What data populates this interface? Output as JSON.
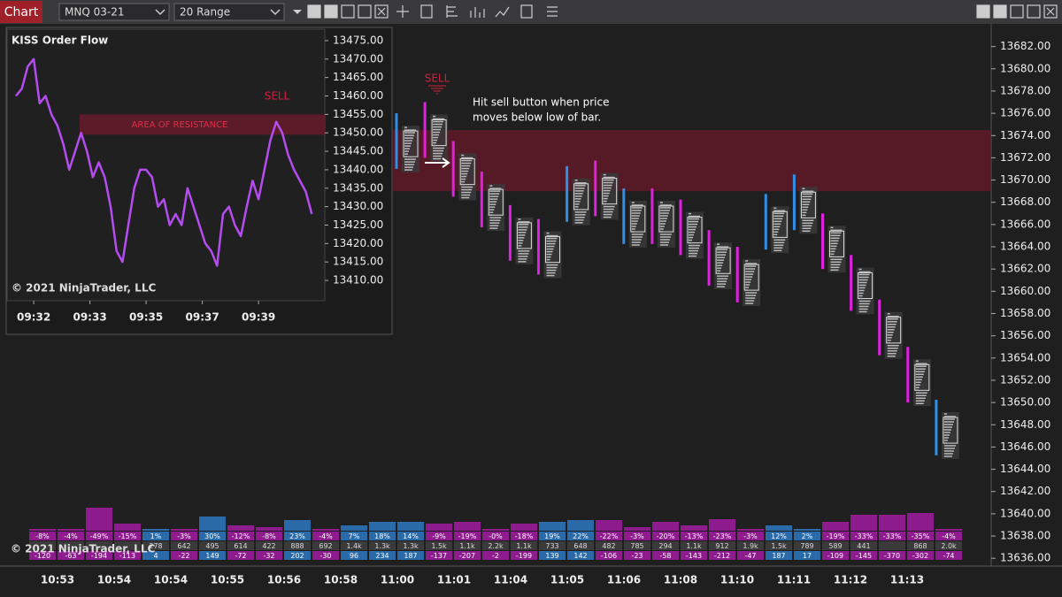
{
  "toolbar": {
    "title": "Chart",
    "instrument": "MNQ 03-21",
    "bar_type": "20 Range"
  },
  "main_chart": {
    "type": "candlestick",
    "ylim": [
      13635.3,
      13683.8
    ],
    "yticks": [
      {
        "value": 13636,
        "label": "13636.00"
      },
      {
        "value": 13638,
        "label": "13638.00"
      },
      {
        "value": 13640,
        "label": "13640.00"
      },
      {
        "value": 13642,
        "label": "13642.00"
      },
      {
        "value": 13644,
        "label": "13644.00"
      },
      {
        "value": 13646,
        "label": "13646.00"
      },
      {
        "value": 13648,
        "label": "13648.00"
      },
      {
        "value": 13650,
        "label": "13650.00"
      },
      {
        "value": 13652,
        "label": "13652.00"
      },
      {
        "value": 13654,
        "label": "13654.00"
      },
      {
        "value": 13656,
        "label": "13656.00"
      },
      {
        "value": 13658,
        "label": "13658.00"
      },
      {
        "value": 13660,
        "label": "13660.00"
      },
      {
        "value": 13662,
        "label": "13662.00"
      },
      {
        "value": 13664,
        "label": "13664.00"
      },
      {
        "value": 13666,
        "label": "13666.00"
      },
      {
        "value": 13668,
        "label": "13668.00"
      },
      {
        "value": 13670,
        "label": "13670.00"
      },
      {
        "value": 13672,
        "label": "13672.00"
      },
      {
        "value": 13674,
        "label": "13674.00"
      },
      {
        "value": 13676,
        "label": "13676.00"
      },
      {
        "value": 13678,
        "label": "13678.00"
      },
      {
        "value": 13680,
        "label": "13680.00"
      },
      {
        "value": 13682,
        "label": "13682.00"
      }
    ],
    "xtick_labels": [
      "10:53",
      "10:54",
      "10:54",
      "10:55",
      "10:56",
      "10:58",
      "11:00",
      "11:01",
      "11:04",
      "11:05",
      "11:06",
      "11:08",
      "11:10",
      "11:11",
      "11:12",
      "11:13"
    ],
    "candles": {
      "open": [
        13671,
        13677,
        13673.5,
        13670.75,
        13667.75,
        13666.5,
        13666.25,
        13671.75,
        13664.25,
        13669.25,
        13668.25,
        13665.5,
        13664,
        13663.75,
        13665.5,
        13667,
        13663.25,
        13659.25,
        13655,
        13645.25
      ],
      "close": [
        13676,
        13672,
        13668.5,
        13665.75,
        13662.75,
        13661.5,
        13671.25,
        13666.75,
        13669.25,
        13664.25,
        13663.25,
        13660.5,
        13659,
        13668.75,
        13670.5,
        13662,
        13658.25,
        13654.25,
        13650,
        13650.25
      ]
    },
    "up_color": "#2f8fe6",
    "down_color": "#e020e0",
    "resistance_zone": [
      13669,
      13674.5
    ],
    "sell_label": "SELL",
    "annotation": [
      "Hit sell button when price",
      "moves below low of bar."
    ],
    "copyright": "© 2021 NinjaTrader, LLC"
  },
  "order_flow_stats": {
    "volume_bars": [
      2,
      2,
      26,
      8,
      2,
      2,
      16,
      6,
      4,
      12,
      2,
      6,
      10,
      10,
      8,
      10,
      2,
      8,
      10,
      12,
      12,
      4,
      10,
      6,
      13,
      2,
      6,
      2,
      10,
      18,
      18,
      20,
      2
    ],
    "delta_percent": [
      "-8%",
      "-4%",
      "-49%",
      "-15%",
      "1%",
      "-3%",
      "30%",
      "-12%",
      "-8%",
      "23%",
      "-4%",
      "7%",
      "18%",
      "14%",
      "-9%",
      "-19%",
      "-0%",
      "-18%",
      "19%",
      "22%",
      "-22%",
      "-3%",
      "-20%",
      "-13%",
      "-23%",
      "-3%",
      "12%",
      "2%",
      "-19%",
      "-33%",
      "-33%",
      "-35%",
      "-4%"
    ],
    "volume": [
      null,
      null,
      null,
      null,
      "278",
      "642",
      "495",
      "614",
      "422",
      "888",
      "692",
      "1.4k",
      "1.3k",
      "1.3k",
      "1.5k",
      "1.1k",
      "2.2k",
      "1.1k",
      "733",
      "648",
      "482",
      "785",
      "294",
      "1.1k",
      "912",
      "1.9k",
      "1.5k",
      "789",
      "589",
      "441",
      null,
      "868",
      "2.0k"
    ],
    "delta": [
      -120,
      -63,
      -194,
      -113,
      4,
      -22,
      149,
      -72,
      -32,
      202,
      -30,
      96,
      234,
      187,
      -137,
      -207,
      -2,
      -199,
      139,
      142,
      -106,
      -23,
      -58,
      -143,
      -212,
      -47,
      187,
      17,
      -109,
      -145,
      -370,
      -302,
      -74
    ]
  },
  "inset_chart": {
    "type": "line",
    "title": "KISS Order Flow",
    "values": [
      13460,
      13462,
      13468,
      13470,
      13458,
      13460,
      13455,
      13452,
      13447,
      13440,
      13445,
      13450,
      13445,
      13438,
      13442,
      13438,
      13430,
      13418,
      13415,
      13425,
      13435,
      13440,
      13440,
      13438,
      13430,
      13432,
      13425,
      13428,
      13425,
      13435,
      13430,
      13425,
      13420,
      13418,
      13414,
      13428,
      13430,
      13425,
      13422,
      13430,
      13437,
      13432,
      13440,
      13448,
      13453,
      13450,
      13444,
      13440,
      13437,
      13434,
      13428
    ],
    "color": "#b44cf0",
    "xlim": [
      -1.5,
      52.2
    ],
    "xticks": [
      {
        "value": 3,
        "label": "09:32"
      },
      {
        "value": 12.5,
        "label": "09:33"
      },
      {
        "value": 22,
        "label": "09:35"
      },
      {
        "value": 31.5,
        "label": "09:37"
      },
      {
        "value": 41,
        "label": "09:39"
      }
    ],
    "ylim": [
      13404.5,
      13478.1
    ],
    "yticks": [
      {
        "value": 13410,
        "label": "13410.00"
      },
      {
        "value": 13415,
        "label": "13415.00"
      },
      {
        "value": 13420,
        "label": "13420.00"
      },
      {
        "value": 13425,
        "label": "13425.00"
      },
      {
        "value": 13430,
        "label": "13430.00"
      },
      {
        "value": 13435,
        "label": "13435.00"
      },
      {
        "value": 13440,
        "label": "13440.00"
      },
      {
        "value": 13445,
        "label": "13445.00"
      },
      {
        "value": 13450,
        "label": "13450.00"
      },
      {
        "value": 13455,
        "label": "13455.00"
      },
      {
        "value": 13460,
        "label": "13460.00"
      },
      {
        "value": 13465,
        "label": "13465.00"
      },
      {
        "value": 13470,
        "label": "13470.00"
      },
      {
        "value": 13475,
        "label": "13475.00"
      }
    ],
    "resistance_zone": [
      13449.5,
      13455
    ],
    "zone_label": "AREA OF RESISTANCE",
    "sell_label": "SELL",
    "copyright": "© 2021 NinjaTrader, LLC"
  }
}
